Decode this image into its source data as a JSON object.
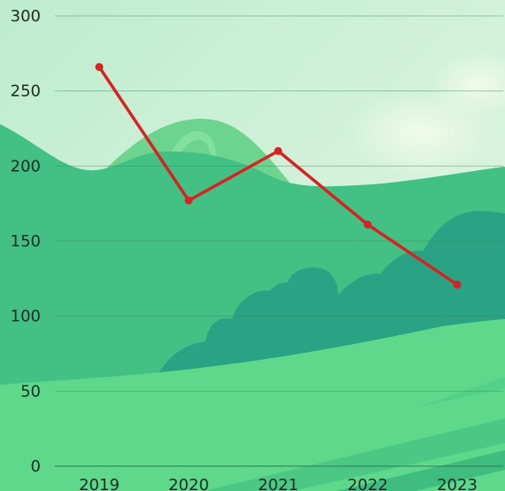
{
  "chart_data": {
    "type": "line",
    "title": "",
    "xlabel": "",
    "ylabel": "",
    "categories": [
      "2019",
      "2020",
      "2021",
      "2022",
      "2023"
    ],
    "series": [
      {
        "values": [
          266,
          177,
          210,
          161,
          121
        ],
        "color": "#d62424"
      }
    ],
    "ylim": [
      0,
      300
    ],
    "yticks": [
      "0",
      "50",
      "100",
      "150",
      "200",
      "250",
      "300"
    ],
    "grid": true,
    "background": "illustrated green hills landscape"
  }
}
